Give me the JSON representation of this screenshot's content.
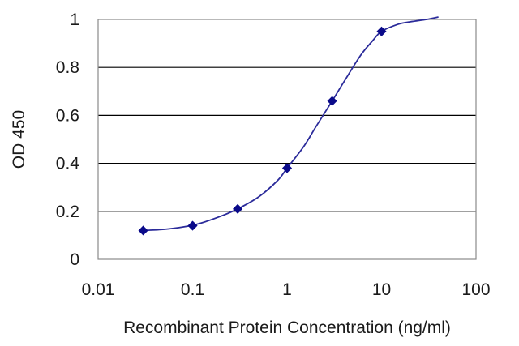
{
  "chart_data": {
    "type": "line",
    "title": "",
    "xlabel": "Recombinant Protein Concentration (ng/ml)",
    "ylabel": "OD 450",
    "x_scale": "log",
    "xlim": [
      0.01,
      100
    ],
    "ylim": [
      0,
      1
    ],
    "x_tick_labels": [
      "0.01",
      "0.1",
      "1",
      "10",
      "100"
    ],
    "y_tick_labels": [
      "0",
      "0.2",
      "0.4",
      "0.6",
      "0.8",
      "1"
    ],
    "grid": "horizontal",
    "series": [
      {
        "points": [
          {
            "x": 0.03,
            "y": 0.12
          },
          {
            "x": 0.1,
            "y": 0.14
          },
          {
            "x": 0.3,
            "y": 0.21
          },
          {
            "x": 1,
            "y": 0.38
          },
          {
            "x": 3,
            "y": 0.66
          },
          {
            "x": 10,
            "y": 0.95
          }
        ],
        "fit_curve": {
          "x": [
            0.03,
            0.05,
            0.08,
            0.12,
            0.2,
            0.3,
            0.5,
            0.8,
            1,
            1.5,
            2,
            3,
            4,
            6,
            8,
            10,
            15,
            20,
            30,
            40
          ],
          "y": [
            0.12,
            0.125,
            0.135,
            0.15,
            0.18,
            0.21,
            0.26,
            0.33,
            0.38,
            0.47,
            0.55,
            0.66,
            0.74,
            0.85,
            0.91,
            0.95,
            0.98,
            0.99,
            1.0,
            1.01
          ]
        }
      }
    ],
    "colors": {
      "line": "#2b2b9a",
      "marker": "#0a0a8a",
      "grid": "#000000",
      "frame": "#8a8a8a"
    }
  }
}
